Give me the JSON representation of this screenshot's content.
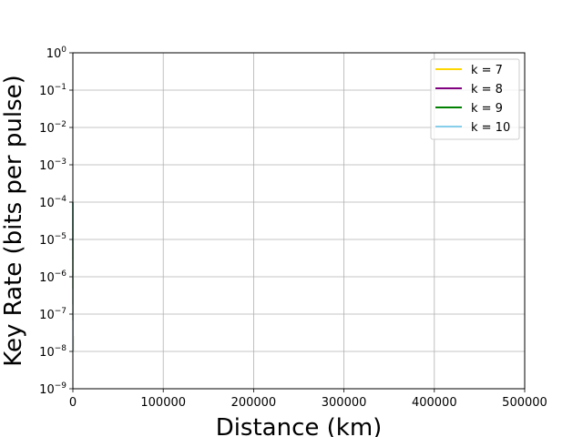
{
  "chart_data": {
    "type": "line",
    "title": "",
    "xlabel": "Distance (km)",
    "ylabel": "Key Rate (bits per pulse)",
    "xlim": [
      0,
      500000
    ],
    "ylim": [
      1e-09,
      1
    ],
    "yscale": "log",
    "grid": true,
    "legend_position": "top-right",
    "x_ticks": [
      {
        "value": 0,
        "label": "0"
      },
      {
        "value": 100000,
        "label": "100000"
      },
      {
        "value": 200000,
        "label": "200000"
      },
      {
        "value": 300000,
        "label": "300000"
      },
      {
        "value": 400000,
        "label": "400000"
      },
      {
        "value": 500000,
        "label": "500000"
      }
    ],
    "y_ticks": [
      {
        "value": 1e-09,
        "base": "10",
        "exp": "−9"
      },
      {
        "value": 1e-08,
        "base": "10",
        "exp": "−8"
      },
      {
        "value": 1e-07,
        "base": "10",
        "exp": "−7"
      },
      {
        "value": 1e-06,
        "base": "10",
        "exp": "−6"
      },
      {
        "value": 1e-05,
        "base": "10",
        "exp": "−5"
      },
      {
        "value": 0.0001,
        "base": "10",
        "exp": "−4"
      },
      {
        "value": 0.001,
        "base": "10",
        "exp": "−3"
      },
      {
        "value": 0.01,
        "base": "10",
        "exp": "−2"
      },
      {
        "value": 0.1,
        "base": "10",
        "exp": "−1"
      },
      {
        "value": 1,
        "base": "10",
        "exp": "0"
      }
    ],
    "series": [
      {
        "name": "k = 7",
        "color": "#ffd700",
        "x": [
          0,
          150,
          300
        ],
        "y": [
          0.0001,
          1e-06,
          1e-08
        ]
      },
      {
        "name": "k = 8",
        "color": "#800080",
        "x": [
          0,
          150,
          300
        ],
        "y": [
          0.0001,
          1e-06,
          1e-08
        ]
      },
      {
        "name": "k = 9",
        "color": "#008000",
        "x": [
          0,
          150,
          300
        ],
        "y": [
          0.0001,
          1e-06,
          1e-08
        ]
      },
      {
        "name": "k = 10",
        "color": "#87ceeb",
        "x": [
          0,
          150,
          300
        ],
        "y": [
          0.0001,
          1e-06,
          1e-08
        ]
      }
    ]
  }
}
